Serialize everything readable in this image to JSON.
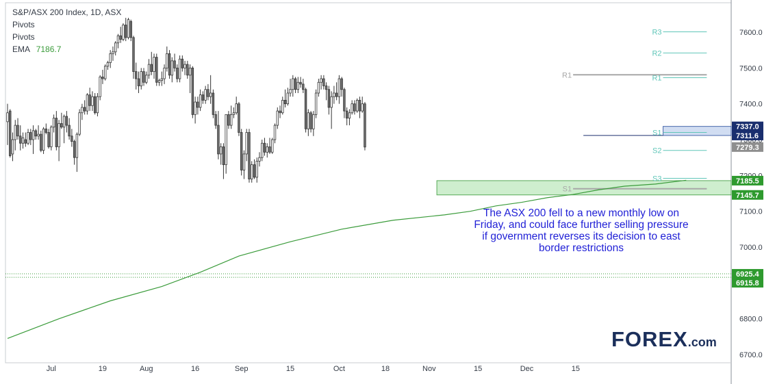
{
  "legend": {
    "title": "S&P/ASX 200 Index, 1D, ASX",
    "line2": "Pivots",
    "line3": "Pivots",
    "ema_label": "EMA",
    "ema_value": "7186.7"
  },
  "annotation": "The ASX 200 fell to a new monthly low on Friday, and could face further selling pressure if government reverses its decision to east border restrictions",
  "logo": {
    "word": "FOREX",
    "suffix": ".com"
  },
  "colors": {
    "up_candle": "#ffffff",
    "down_candle": "#707070",
    "ema": "#3a9b3a",
    "annotation": "#1f1fd6",
    "pivot_teal": "#5fc6b8",
    "pivot_grey": "#a7a7a7",
    "support_zone": "#c6ecc6",
    "resistance_zone": "#c9d8f0"
  },
  "chart_data": {
    "type": "candlestick",
    "title": "S&P/ASX 200 Index, 1D, ASX",
    "ylim": [
      6700,
      7680
    ],
    "y_ticks": [
      6700,
      6800,
      6900,
      7000,
      7100,
      7200,
      7300,
      7400,
      7500,
      7600
    ],
    "y_tick_labels": [
      "6700.0",
      "6800.0",
      "6900.0",
      "7000.0",
      "7100.0",
      "7200.0",
      "7300.0",
      "7400.0",
      "7500.0",
      "7600.0"
    ],
    "x_tick_labels": [
      "Jul",
      "19",
      "Aug",
      "16",
      "Sep",
      "15",
      "Oct",
      "18",
      "Nov",
      "15",
      "Dec",
      "15"
    ],
    "x_tick_bar_index": [
      17,
      37,
      54,
      73,
      91,
      110,
      129,
      147,
      164,
      183,
      202,
      221
    ],
    "price_labels": [
      {
        "value": 7337.0,
        "text": "7337.0",
        "style": "navy"
      },
      {
        "value": 7311.6,
        "text": "7311.6",
        "style": "navy"
      },
      {
        "value": 7279.3,
        "text": "7279.3",
        "style": "grey"
      },
      {
        "value": 7185.5,
        "text": "7185.5",
        "style": "green"
      },
      {
        "value": 7145.7,
        "text": "7145.7",
        "style": "green"
      },
      {
        "value": 6925.4,
        "text": "6925.4",
        "style": "green"
      },
      {
        "value": 6915.8,
        "text": "6915.8",
        "style": "green"
      }
    ],
    "candles": [
      {
        "o": 7350,
        "h": 7400,
        "l": 7285,
        "c": 7375
      },
      {
        "o": 7380,
        "h": 7385,
        "l": 7250,
        "c": 7255
      },
      {
        "o": 7260,
        "h": 7320,
        "l": 7240,
        "c": 7300
      },
      {
        "o": 7300,
        "h": 7355,
        "l": 7270,
        "c": 7340
      },
      {
        "o": 7340,
        "h": 7360,
        "l": 7300,
        "c": 7310
      },
      {
        "o": 7310,
        "h": 7340,
        "l": 7270,
        "c": 7290
      },
      {
        "o": 7290,
        "h": 7320,
        "l": 7275,
        "c": 7305
      },
      {
        "o": 7300,
        "h": 7320,
        "l": 7280,
        "c": 7290
      },
      {
        "o": 7290,
        "h": 7330,
        "l": 7285,
        "c": 7320
      },
      {
        "o": 7320,
        "h": 7330,
        "l": 7285,
        "c": 7300
      },
      {
        "o": 7300,
        "h": 7340,
        "l": 7260,
        "c": 7325
      },
      {
        "o": 7325,
        "h": 7330,
        "l": 7300,
        "c": 7310
      },
      {
        "o": 7310,
        "h": 7340,
        "l": 7300,
        "c": 7315
      },
      {
        "o": 7315,
        "h": 7325,
        "l": 7265,
        "c": 7270
      },
      {
        "o": 7270,
        "h": 7335,
        "l": 7260,
        "c": 7330
      },
      {
        "o": 7330,
        "h": 7345,
        "l": 7315,
        "c": 7320
      },
      {
        "o": 7320,
        "h": 7330,
        "l": 7275,
        "c": 7280
      },
      {
        "o": 7280,
        "h": 7340,
        "l": 7270,
        "c": 7335
      },
      {
        "o": 7335,
        "h": 7370,
        "l": 7320,
        "c": 7360
      },
      {
        "o": 7360,
        "h": 7380,
        "l": 7270,
        "c": 7280
      },
      {
        "o": 7280,
        "h": 7355,
        "l": 7240,
        "c": 7345
      },
      {
        "o": 7345,
        "h": 7375,
        "l": 7330,
        "c": 7335
      },
      {
        "o": 7335,
        "h": 7370,
        "l": 7290,
        "c": 7365
      },
      {
        "o": 7365,
        "h": 7380,
        "l": 7320,
        "c": 7340
      },
      {
        "o": 7340,
        "h": 7360,
        "l": 7300,
        "c": 7310
      },
      {
        "o": 7310,
        "h": 7330,
        "l": 7280,
        "c": 7295
      },
      {
        "o": 7295,
        "h": 7300,
        "l": 7230,
        "c": 7250
      },
      {
        "o": 7250,
        "h": 7320,
        "l": 7210,
        "c": 7315
      },
      {
        "o": 7315,
        "h": 7385,
        "l": 7310,
        "c": 7375
      },
      {
        "o": 7375,
        "h": 7400,
        "l": 7355,
        "c": 7390
      },
      {
        "o": 7390,
        "h": 7410,
        "l": 7370,
        "c": 7380
      },
      {
        "o": 7380,
        "h": 7430,
        "l": 7370,
        "c": 7425
      },
      {
        "o": 7425,
        "h": 7445,
        "l": 7380,
        "c": 7395
      },
      {
        "o": 7395,
        "h": 7435,
        "l": 7380,
        "c": 7420
      },
      {
        "o": 7420,
        "h": 7430,
        "l": 7370,
        "c": 7375
      },
      {
        "o": 7375,
        "h": 7430,
        "l": 7365,
        "c": 7420
      },
      {
        "o": 7420,
        "h": 7480,
        "l": 7410,
        "c": 7475
      },
      {
        "o": 7475,
        "h": 7495,
        "l": 7455,
        "c": 7470
      },
      {
        "o": 7470,
        "h": 7510,
        "l": 7465,
        "c": 7505
      },
      {
        "o": 7505,
        "h": 7520,
        "l": 7495,
        "c": 7515
      },
      {
        "o": 7515,
        "h": 7550,
        "l": 7500,
        "c": 7540
      },
      {
        "o": 7540,
        "h": 7560,
        "l": 7520,
        "c": 7545
      },
      {
        "o": 7545,
        "h": 7575,
        "l": 7535,
        "c": 7570
      },
      {
        "o": 7570,
        "h": 7595,
        "l": 7555,
        "c": 7590
      },
      {
        "o": 7590,
        "h": 7615,
        "l": 7570,
        "c": 7580
      },
      {
        "o": 7580,
        "h": 7625,
        "l": 7575,
        "c": 7620
      },
      {
        "o": 7620,
        "h": 7640,
        "l": 7575,
        "c": 7585
      },
      {
        "o": 7585,
        "h": 7640,
        "l": 7580,
        "c": 7635
      },
      {
        "o": 7630,
        "h": 7635,
        "l": 7575,
        "c": 7585
      },
      {
        "o": 7585,
        "h": 7590,
        "l": 7470,
        "c": 7490
      },
      {
        "o": 7490,
        "h": 7515,
        "l": 7440,
        "c": 7470
      },
      {
        "o": 7470,
        "h": 7490,
        "l": 7430,
        "c": 7450
      },
      {
        "o": 7450,
        "h": 7500,
        "l": 7440,
        "c": 7490
      },
      {
        "o": 7490,
        "h": 7500,
        "l": 7450,
        "c": 7460
      },
      {
        "o": 7460,
        "h": 7490,
        "l": 7455,
        "c": 7480
      },
      {
        "o": 7480,
        "h": 7525,
        "l": 7470,
        "c": 7510
      },
      {
        "o": 7510,
        "h": 7545,
        "l": 7480,
        "c": 7490
      },
      {
        "o": 7490,
        "h": 7540,
        "l": 7470,
        "c": 7530
      },
      {
        "o": 7530,
        "h": 7540,
        "l": 7450,
        "c": 7460
      },
      {
        "o": 7460,
        "h": 7470,
        "l": 7450,
        "c": 7465
      },
      {
        "o": 7465,
        "h": 7490,
        "l": 7450,
        "c": 7470
      },
      {
        "o": 7470,
        "h": 7510,
        "l": 7455,
        "c": 7500
      },
      {
        "o": 7500,
        "h": 7560,
        "l": 7490,
        "c": 7540
      },
      {
        "o": 7540,
        "h": 7550,
        "l": 7470,
        "c": 7480
      },
      {
        "o": 7480,
        "h": 7530,
        "l": 7460,
        "c": 7520
      },
      {
        "o": 7520,
        "h": 7540,
        "l": 7490,
        "c": 7500
      },
      {
        "o": 7500,
        "h": 7510,
        "l": 7460,
        "c": 7470
      },
      {
        "o": 7470,
        "h": 7535,
        "l": 7460,
        "c": 7525
      },
      {
        "o": 7525,
        "h": 7535,
        "l": 7490,
        "c": 7500
      },
      {
        "o": 7500,
        "h": 7520,
        "l": 7480,
        "c": 7510
      },
      {
        "o": 7510,
        "h": 7520,
        "l": 7470,
        "c": 7480
      },
      {
        "o": 7480,
        "h": 7510,
        "l": 7430,
        "c": 7500
      },
      {
        "o": 7500,
        "h": 7505,
        "l": 7360,
        "c": 7370
      },
      {
        "o": 7370,
        "h": 7420,
        "l": 7345,
        "c": 7405
      },
      {
        "o": 7405,
        "h": 7420,
        "l": 7370,
        "c": 7390
      },
      {
        "o": 7390,
        "h": 7440,
        "l": 7380,
        "c": 7425
      },
      {
        "o": 7425,
        "h": 7435,
        "l": 7400,
        "c": 7410
      },
      {
        "o": 7410,
        "h": 7450,
        "l": 7400,
        "c": 7440
      },
      {
        "o": 7440,
        "h": 7455,
        "l": 7410,
        "c": 7420
      },
      {
        "o": 7420,
        "h": 7480,
        "l": 7400,
        "c": 7430
      },
      {
        "o": 7430,
        "h": 7440,
        "l": 7360,
        "c": 7370
      },
      {
        "o": 7370,
        "h": 7380,
        "l": 7330,
        "c": 7340
      },
      {
        "o": 7340,
        "h": 7380,
        "l": 7245,
        "c": 7260
      },
      {
        "o": 7260,
        "h": 7290,
        "l": 7230,
        "c": 7280
      },
      {
        "o": 7280,
        "h": 7290,
        "l": 7190,
        "c": 7230
      },
      {
        "o": 7230,
        "h": 7370,
        "l": 7205,
        "c": 7370
      },
      {
        "o": 7370,
        "h": 7380,
        "l": 7330,
        "c": 7340
      },
      {
        "o": 7340,
        "h": 7395,
        "l": 7330,
        "c": 7370
      },
      {
        "o": 7370,
        "h": 7390,
        "l": 7360,
        "c": 7375
      },
      {
        "o": 7375,
        "h": 7420,
        "l": 7370,
        "c": 7400
      },
      {
        "o": 7400,
        "h": 7405,
        "l": 7310,
        "c": 7320
      },
      {
        "o": 7320,
        "h": 7330,
        "l": 7200,
        "c": 7215
      },
      {
        "o": 7215,
        "h": 7270,
        "l": 7190,
        "c": 7260
      },
      {
        "o": 7260,
        "h": 7330,
        "l": 7240,
        "c": 7320
      },
      {
        "o": 7320,
        "h": 7330,
        "l": 7180,
        "c": 7190
      },
      {
        "o": 7190,
        "h": 7240,
        "l": 7180,
        "c": 7230
      },
      {
        "o": 7230,
        "h": 7245,
        "l": 7190,
        "c": 7195
      },
      {
        "o": 7195,
        "h": 7250,
        "l": 7180,
        "c": 7240
      },
      {
        "o": 7240,
        "h": 7265,
        "l": 7225,
        "c": 7250
      },
      {
        "o": 7250,
        "h": 7300,
        "l": 7240,
        "c": 7290
      },
      {
        "o": 7290,
        "h": 7305,
        "l": 7255,
        "c": 7265
      },
      {
        "o": 7265,
        "h": 7290,
        "l": 7250,
        "c": 7280
      },
      {
        "o": 7280,
        "h": 7305,
        "l": 7260,
        "c": 7265
      },
      {
        "o": 7265,
        "h": 7305,
        "l": 7260,
        "c": 7300
      },
      {
        "o": 7300,
        "h": 7345,
        "l": 7290,
        "c": 7340
      },
      {
        "o": 7340,
        "h": 7390,
        "l": 7330,
        "c": 7380
      },
      {
        "o": 7380,
        "h": 7395,
        "l": 7360,
        "c": 7375
      },
      {
        "o": 7375,
        "h": 7420,
        "l": 7370,
        "c": 7410
      },
      {
        "o": 7410,
        "h": 7440,
        "l": 7390,
        "c": 7400
      },
      {
        "o": 7400,
        "h": 7445,
        "l": 7395,
        "c": 7430
      },
      {
        "o": 7430,
        "h": 7470,
        "l": 7420,
        "c": 7440
      },
      {
        "o": 7440,
        "h": 7480,
        "l": 7420,
        "c": 7470
      },
      {
        "o": 7470,
        "h": 7475,
        "l": 7430,
        "c": 7440
      },
      {
        "o": 7440,
        "h": 7475,
        "l": 7430,
        "c": 7460
      },
      {
        "o": 7460,
        "h": 7475,
        "l": 7445,
        "c": 7455
      },
      {
        "o": 7455,
        "h": 7470,
        "l": 7430,
        "c": 7440
      },
      {
        "o": 7440,
        "h": 7445,
        "l": 7320,
        "c": 7330
      },
      {
        "o": 7330,
        "h": 7385,
        "l": 7310,
        "c": 7375
      },
      {
        "o": 7375,
        "h": 7380,
        "l": 7320,
        "c": 7330
      },
      {
        "o": 7330,
        "h": 7380,
        "l": 7310,
        "c": 7370
      },
      {
        "o": 7370,
        "h": 7440,
        "l": 7360,
        "c": 7430
      },
      {
        "o": 7430,
        "h": 7470,
        "l": 7420,
        "c": 7460
      },
      {
        "o": 7460,
        "h": 7480,
        "l": 7440,
        "c": 7470
      },
      {
        "o": 7470,
        "h": 7480,
        "l": 7440,
        "c": 7450
      },
      {
        "o": 7450,
        "h": 7460,
        "l": 7410,
        "c": 7440
      },
      {
        "o": 7440,
        "h": 7450,
        "l": 7370,
        "c": 7390
      },
      {
        "o": 7390,
        "h": 7435,
        "l": 7330,
        "c": 7420
      },
      {
        "o": 7420,
        "h": 7450,
        "l": 7400,
        "c": 7430
      },
      {
        "o": 7430,
        "h": 7460,
        "l": 7410,
        "c": 7420
      },
      {
        "o": 7420,
        "h": 7480,
        "l": 7400,
        "c": 7470
      },
      {
        "o": 7470,
        "h": 7475,
        "l": 7420,
        "c": 7440
      },
      {
        "o": 7440,
        "h": 7445,
        "l": 7360,
        "c": 7380
      },
      {
        "o": 7380,
        "h": 7390,
        "l": 7340,
        "c": 7360
      },
      {
        "o": 7360,
        "h": 7385,
        "l": 7340,
        "c": 7375
      },
      {
        "o": 7375,
        "h": 7410,
        "l": 7370,
        "c": 7400
      },
      {
        "o": 7400,
        "h": 7410,
        "l": 7370,
        "c": 7380
      },
      {
        "o": 7380,
        "h": 7415,
        "l": 7375,
        "c": 7410
      },
      {
        "o": 7410,
        "h": 7420,
        "l": 7360,
        "c": 7380
      },
      {
        "o": 7380,
        "h": 7420,
        "l": 7375,
        "c": 7400
      },
      {
        "o": 7400,
        "h": 7405,
        "l": 7270,
        "c": 7279.3
      }
    ],
    "ema": {
      "name": "EMA 7186.7",
      "points": [
        [
          0,
          6745
        ],
        [
          20,
          6800
        ],
        [
          40,
          6850
        ],
        [
          60,
          6890
        ],
        [
          75,
          6930
        ],
        [
          90,
          6975
        ],
        [
          110,
          7015
        ],
        [
          130,
          7050
        ],
        [
          150,
          7075
        ],
        [
          170,
          7090
        ],
        [
          180,
          7100
        ],
        [
          190,
          7115
        ],
        [
          200,
          7125
        ],
        [
          210,
          7138
        ],
        [
          220,
          7147
        ],
        [
          230,
          7160
        ],
        [
          240,
          7170
        ],
        [
          252,
          7176
        ],
        [
          264,
          7186.7
        ]
      ]
    },
    "pivot_lines": [
      {
        "label": "R3",
        "value": 7601,
        "x0": 255,
        "x1": 272,
        "color": "teal"
      },
      {
        "label": "R2",
        "value": 7542,
        "x0": 255,
        "x1": 272,
        "color": "teal"
      },
      {
        "label": "R1",
        "value": 7473,
        "x0": 255,
        "x1": 272,
        "color": "teal"
      },
      {
        "label": "R1",
        "value": 7481,
        "x0": 220,
        "x1": 272,
        "color": "grey"
      },
      {
        "label": "S1",
        "value": 7320,
        "x0": 255,
        "x1": 272,
        "color": "teal"
      },
      {
        "label": "S2",
        "value": 7270,
        "x0": 255,
        "x1": 272,
        "color": "teal"
      },
      {
        "label": "S3",
        "value": 7192,
        "x0": 255,
        "x1": 272,
        "color": "teal"
      },
      {
        "label": "S1",
        "value": 7163,
        "x0": 220,
        "x1": 272,
        "color": "grey"
      }
    ],
    "zones": [
      {
        "y0": 7145.7,
        "y1": 7185.5,
        "x0": 167,
        "color": "green"
      },
      {
        "y0": 7311.6,
        "y1": 7337.0,
        "x0": 255,
        "color": "blue"
      }
    ],
    "hlines": [
      {
        "value": 7311.6,
        "x0": 224,
        "x1": 255,
        "color": "navy"
      },
      {
        "value": 6925.4,
        "x0": 0,
        "color": "green_dotted"
      },
      {
        "value": 6915.8,
        "x0": 0,
        "color": "green_dotted"
      }
    ]
  }
}
